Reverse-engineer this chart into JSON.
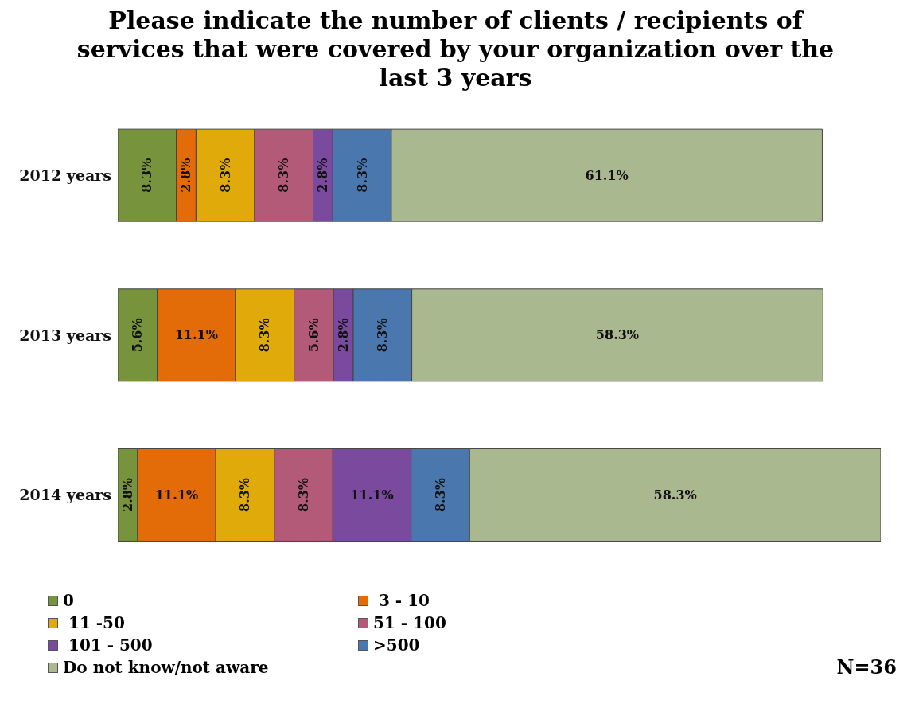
{
  "chart_data": {
    "type": "bar",
    "title": "Please indicate the number of clients / recipients of services that were covered by your organization over the last 3 years",
    "orientation": "horizontal",
    "stacked": true,
    "categories": [
      "2012 years",
      "2013 years",
      "2014 years"
    ],
    "series": [
      {
        "name": "0",
        "color": "#77933c",
        "values": [
          8.3,
          5.6,
          2.8
        ],
        "value_labels": [
          "8.3%",
          "5.6%",
          "2.8%"
        ]
      },
      {
        "name": " 3 - 10",
        "color": "#e36c09",
        "values": [
          2.8,
          11.1,
          11.1
        ],
        "value_labels": [
          "2.8%",
          "11.1%",
          "11.1%"
        ]
      },
      {
        "name": " 11 -50",
        "color": "#e0aa0a",
        "values": [
          8.3,
          8.3,
          8.3
        ],
        "value_labels": [
          "8.3%",
          "8.3%",
          "8.3%"
        ]
      },
      {
        "name": "51 - 100",
        "color": "#b35a78",
        "values": [
          8.3,
          5.6,
          8.3
        ],
        "value_labels": [
          "8.3%",
          "5.6%",
          "8.3%"
        ]
      },
      {
        "name": " 101 - 500",
        "color": "#7a4a9e",
        "values": [
          2.8,
          2.8,
          11.1
        ],
        "value_labels": [
          "2.8%",
          "2.8%",
          "11.1%"
        ]
      },
      {
        "name": ">500",
        "color": "#4a78ae",
        "values": [
          8.3,
          8.3,
          8.3
        ],
        "value_labels": [
          "8.3%",
          "8.3%",
          "8.3%"
        ]
      },
      {
        "name": "Do not know/not aware",
        "color": "#a9b88f",
        "values": [
          61.1,
          58.3,
          58.3
        ],
        "value_labels": [
          "61.1%",
          "58.3%",
          "58.3%"
        ]
      }
    ],
    "tick_labels": "y",
    "legend": "bottom",
    "annotations": [
      "N=36"
    ]
  }
}
